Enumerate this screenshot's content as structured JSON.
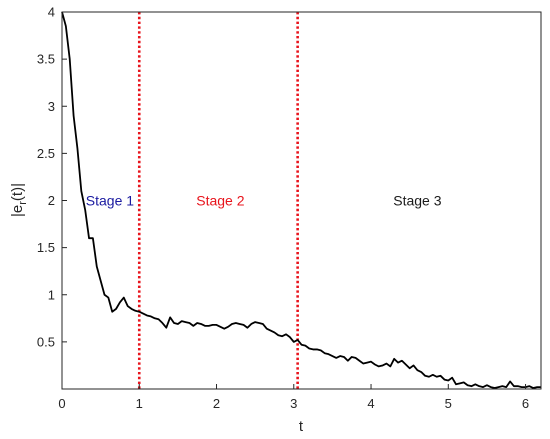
{
  "chart_data": {
    "type": "line",
    "xlabel": "t",
    "ylabel": "|e_r(t)|",
    "ylabel_main": "|e",
    "ylabel_sub": "r",
    "ylabel_tail": "(t)|",
    "xlim": [
      0,
      6.2
    ],
    "ylim": [
      0,
      4
    ],
    "xticks": [
      0,
      1,
      2,
      3,
      4,
      5,
      6
    ],
    "yticks": [
      0.5,
      1,
      1.5,
      2,
      2.5,
      3,
      3.5,
      4
    ],
    "grid": false,
    "series": [
      {
        "color": "#000000",
        "x": [
          0,
          0.05,
          0.1,
          0.15,
          0.2,
          0.25,
          0.3,
          0.35,
          0.4,
          0.45,
          0.5,
          0.55,
          0.6,
          0.65,
          0.7,
          0.75,
          0.8,
          0.85,
          0.9,
          0.95,
          1.0,
          1.05,
          1.1,
          1.15,
          1.2,
          1.25,
          1.3,
          1.35,
          1.4,
          1.45,
          1.5,
          1.55,
          1.6,
          1.65,
          1.7,
          1.75,
          1.8,
          1.85,
          1.9,
          1.95,
          2.0,
          2.05,
          2.1,
          2.15,
          2.2,
          2.25,
          2.3,
          2.35,
          2.4,
          2.45,
          2.5,
          2.55,
          2.6,
          2.65,
          2.7,
          2.75,
          2.8,
          2.85,
          2.9,
          2.95,
          3.0,
          3.05,
          3.1,
          3.15,
          3.2,
          3.25,
          3.3,
          3.35,
          3.4,
          3.45,
          3.5,
          3.55,
          3.6,
          3.65,
          3.7,
          3.75,
          3.8,
          3.85,
          3.9,
          3.95,
          4.0,
          4.05,
          4.1,
          4.15,
          4.2,
          4.25,
          4.3,
          4.35,
          4.4,
          4.45,
          4.5,
          4.55,
          4.6,
          4.65,
          4.7,
          4.75,
          4.8,
          4.85,
          4.9,
          4.95,
          5.0,
          5.05,
          5.1,
          5.15,
          5.2,
          5.25,
          5.3,
          5.35,
          5.4,
          5.45,
          5.5,
          5.55,
          5.6,
          5.65,
          5.7,
          5.75,
          5.8,
          5.85,
          5.9,
          5.95,
          6.0,
          6.05,
          6.1,
          6.15,
          6.2
        ],
        "y": [
          4.0,
          3.85,
          3.5,
          2.9,
          2.55,
          2.1,
          1.9,
          1.6,
          1.6,
          1.3,
          1.15,
          1.0,
          0.97,
          0.82,
          0.85,
          0.92,
          0.97,
          0.88,
          0.85,
          0.83,
          0.82,
          0.8,
          0.78,
          0.77,
          0.75,
          0.74,
          0.7,
          0.65,
          0.76,
          0.7,
          0.69,
          0.72,
          0.71,
          0.7,
          0.67,
          0.7,
          0.69,
          0.67,
          0.67,
          0.68,
          0.68,
          0.66,
          0.64,
          0.66,
          0.69,
          0.7,
          0.69,
          0.68,
          0.65,
          0.69,
          0.71,
          0.7,
          0.69,
          0.64,
          0.62,
          0.6,
          0.57,
          0.56,
          0.58,
          0.55,
          0.5,
          0.52,
          0.47,
          0.46,
          0.43,
          0.42,
          0.42,
          0.41,
          0.38,
          0.37,
          0.35,
          0.33,
          0.35,
          0.34,
          0.3,
          0.34,
          0.33,
          0.3,
          0.27,
          0.28,
          0.29,
          0.26,
          0.24,
          0.25,
          0.27,
          0.24,
          0.32,
          0.28,
          0.3,
          0.26,
          0.22,
          0.25,
          0.2,
          0.18,
          0.14,
          0.13,
          0.15,
          0.13,
          0.14,
          0.1,
          0.09,
          0.12,
          0.05,
          0.06,
          0.07,
          0.04,
          0.03,
          0.05,
          0.03,
          0.02,
          0.04,
          0.02,
          0.01,
          0.02,
          0.03,
          0.02,
          0.08,
          0.03,
          0.03,
          0.02,
          0.02,
          0.03,
          0.01,
          0.02,
          0.02
        ]
      }
    ],
    "vlines": [
      {
        "x": 1.0,
        "color": "#e8141c",
        "style": "dotted"
      },
      {
        "x": 3.05,
        "color": "#e8141c",
        "style": "dotted"
      }
    ],
    "annotations": [
      {
        "text": "Stage 1",
        "x": 0.62,
        "y": 2.0,
        "color": "#1a1aa0"
      },
      {
        "text": "Stage 2",
        "x": 2.05,
        "y": 2.0,
        "color": "#e8141c"
      },
      {
        "text": "Stage 3",
        "x": 4.6,
        "y": 2.0,
        "color": "#1a1a1a"
      }
    ]
  }
}
